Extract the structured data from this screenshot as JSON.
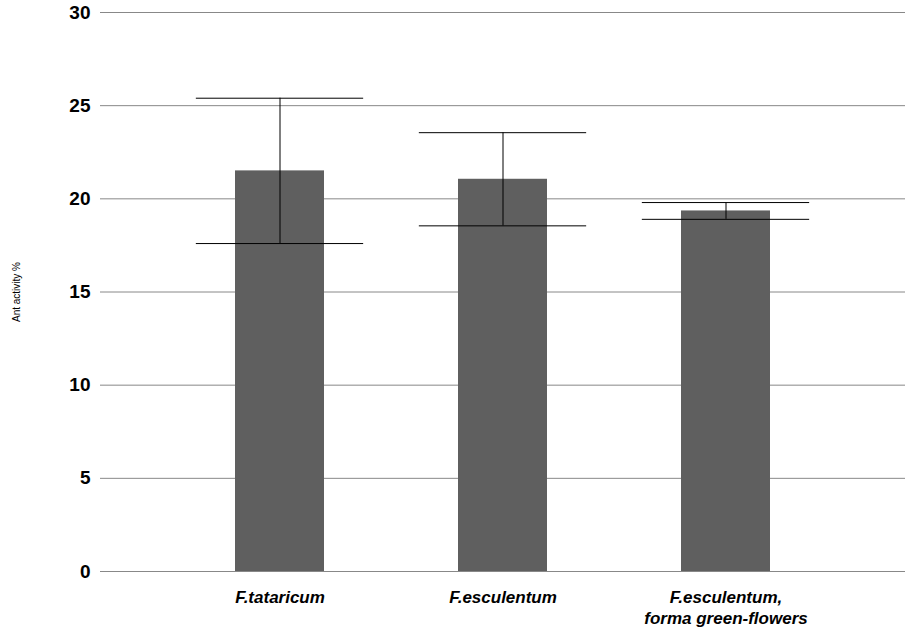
{
  "chart_data": {
    "type": "bar",
    "y_label": "Ant activity %",
    "categories": [
      "F.tataricum",
      "F.esculentum",
      "F.esculentum,\nforma green-flowers"
    ],
    "values": [
      21.5,
      21.05,
      19.35
    ],
    "errors": [
      3.9,
      2.5,
      0.45
    ],
    "color": "#5f5f5f",
    "ylim": [
      0,
      30
    ],
    "yticks": [
      0,
      5,
      10,
      15,
      20,
      25,
      30
    ],
    "grid": true
  }
}
